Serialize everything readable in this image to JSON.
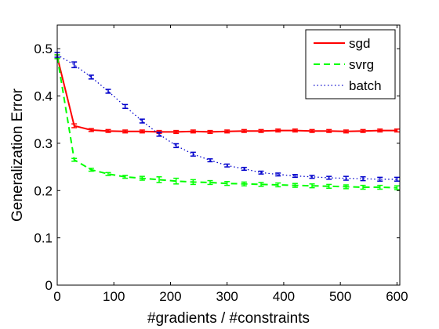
{
  "chart_data": {
    "type": "line",
    "title": "",
    "xlabel": "#gradients / #constraints",
    "ylabel": "Generalization Error",
    "xlim": [
      0,
      605
    ],
    "ylim": [
      0,
      0.55
    ],
    "xticks": [
      0,
      100,
      200,
      300,
      400,
      500,
      600
    ],
    "yticks": [
      0,
      0.1,
      0.2,
      0.3,
      0.4,
      0.5
    ],
    "xtick_labels": [
      "0",
      "100",
      "200",
      "300",
      "400",
      "500",
      "600"
    ],
    "ytick_labels": [
      "0",
      "0.1",
      "0.2",
      "0.3",
      "0.4",
      "0.5"
    ],
    "grid": false,
    "legend_position": "top-right",
    "series": [
      {
        "name": "sgd",
        "color": "#ff0000",
        "style": "solid",
        "x": [
          0,
          30,
          60,
          90,
          120,
          150,
          180,
          210,
          240,
          270,
          300,
          330,
          360,
          390,
          420,
          450,
          480,
          510,
          540,
          570,
          600
        ],
        "y": [
          0.483,
          0.337,
          0.328,
          0.326,
          0.325,
          0.325,
          0.324,
          0.324,
          0.325,
          0.324,
          0.325,
          0.326,
          0.326,
          0.327,
          0.327,
          0.326,
          0.326,
          0.325,
          0.326,
          0.327,
          0.327
        ],
        "err": [
          0.004,
          0.004,
          0.003,
          0.003,
          0.003,
          0.003,
          0.003,
          0.003,
          0.003,
          0.003,
          0.003,
          0.003,
          0.003,
          0.003,
          0.003,
          0.003,
          0.003,
          0.003,
          0.003,
          0.003,
          0.003
        ]
      },
      {
        "name": "svrg",
        "color": "#00ff00",
        "style": "dashed",
        "x": [
          0,
          30,
          60,
          90,
          120,
          150,
          180,
          210,
          240,
          270,
          300,
          330,
          360,
          390,
          420,
          450,
          480,
          510,
          540,
          570,
          600
        ],
        "y": [
          0.483,
          0.265,
          0.244,
          0.235,
          0.229,
          0.226,
          0.223,
          0.22,
          0.218,
          0.217,
          0.215,
          0.214,
          0.213,
          0.212,
          0.211,
          0.21,
          0.209,
          0.208,
          0.207,
          0.207,
          0.206
        ],
        "err": [
          0.004,
          0.003,
          0.003,
          0.003,
          0.003,
          0.004,
          0.006,
          0.006,
          0.005,
          0.004,
          0.004,
          0.004,
          0.004,
          0.004,
          0.004,
          0.004,
          0.004,
          0.004,
          0.004,
          0.004,
          0.004
        ]
      },
      {
        "name": "batch",
        "color": "#0000cc",
        "style": "dotted",
        "x": [
          0,
          30,
          60,
          90,
          120,
          150,
          180,
          210,
          240,
          270,
          300,
          330,
          360,
          390,
          420,
          450,
          480,
          510,
          540,
          570,
          600
        ],
        "y": [
          0.487,
          0.466,
          0.44,
          0.41,
          0.378,
          0.347,
          0.319,
          0.295,
          0.277,
          0.264,
          0.253,
          0.246,
          0.238,
          0.234,
          0.231,
          0.229,
          0.227,
          0.226,
          0.225,
          0.224,
          0.224
        ],
        "err": [
          0.005,
          0.006,
          0.004,
          0.004,
          0.004,
          0.004,
          0.004,
          0.004,
          0.004,
          0.003,
          0.003,
          0.003,
          0.003,
          0.003,
          0.003,
          0.003,
          0.003,
          0.004,
          0.004,
          0.004,
          0.004
        ]
      }
    ]
  }
}
